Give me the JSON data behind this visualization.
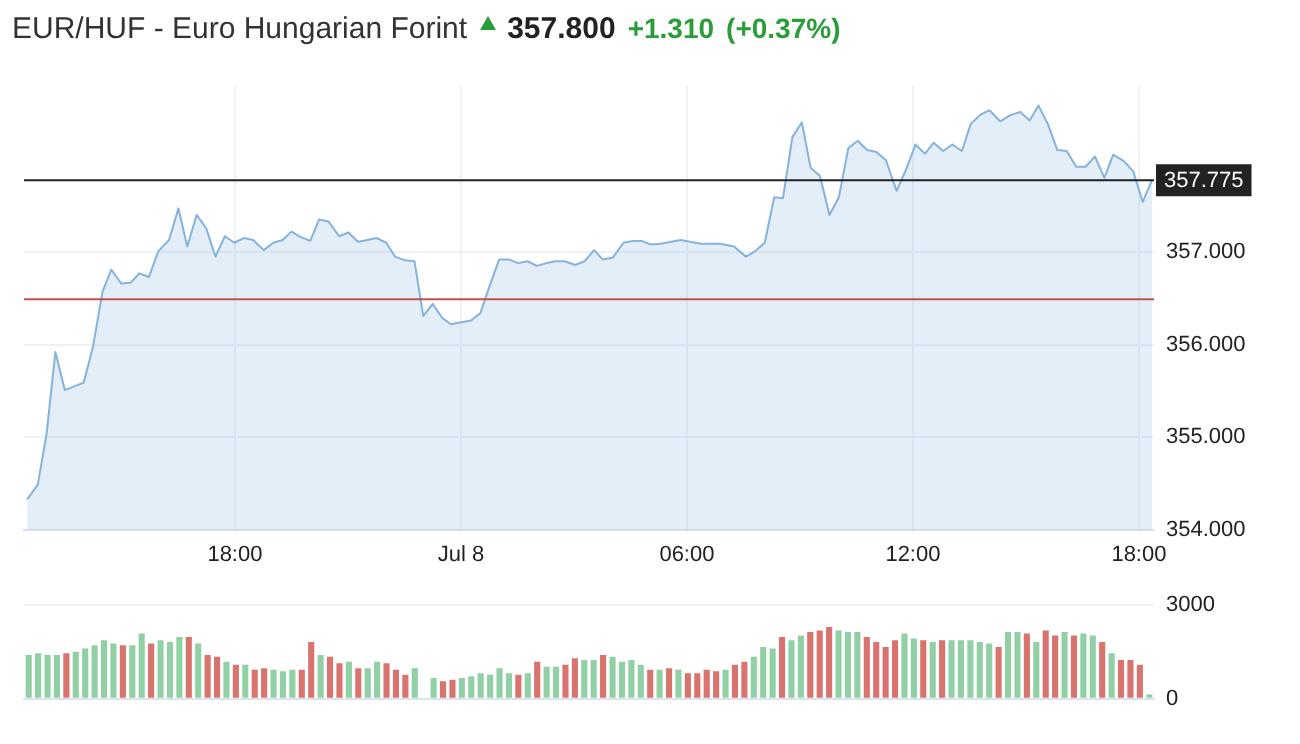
{
  "chart_data": [
    {
      "type": "area",
      "title": "EUR/HUF - Euro Hungarian Forint",
      "annotations": [
        "357.800",
        "+1.310",
        "(+0.37%)"
      ],
      "x": [
        "--07-07T12:29",
        "--07-07T12:46",
        "--07-07T13:00",
        "--07-07T13:14",
        "--07-07T13:29",
        "--07-07T13:59",
        "--07-07T14:14",
        "--07-07T14:29",
        "--07-07T14:43",
        "--07-07T14:59",
        "--07-07T15:14",
        "--07-07T15:28",
        "--07-07T15:43",
        "--07-07T15:58",
        "--07-07T16:15",
        "--07-07T16:30",
        "--07-07T16:44",
        "--07-07T16:59",
        "--07-07T17:14",
        "--07-07T17:29",
        "--07-07T17:44",
        "--07-07T17:59",
        "--07-07T18:14",
        "--07-07T18:29",
        "--07-07T18:46",
        "--07-07T19:01",
        "--07-07T19:16",
        "--07-07T19:30",
        "--07-07T19:45",
        "--07-07T20:00",
        "--07-07T20:14",
        "--07-07T20:29",
        "--07-07T20:46",
        "--07-07T21:01",
        "--07-07T21:16",
        "--07-07T21:31",
        "--07-07T21:46",
        "--07-07T22:01",
        "--07-07T22:15",
        "--07-07T22:31",
        "--07-07T22:46",
        "--07-07T23:00",
        "--07-07T23:15",
        "--07-07T23:30",
        "--07-07T23:44",
        "--07-07T23:59",
        "--07-08T00:16",
        "--07-08T00:31",
        "--07-08T00:46",
        "--07-08T01:01",
        "--07-08T01:16",
        "--07-08T01:31",
        "--07-08T01:46",
        "--07-08T02:01",
        "--07-08T02:16",
        "--07-08T02:30",
        "--07-08T02:45",
        "--07-08T03:02",
        "--07-08T03:17",
        "--07-08T03:32",
        "--07-08T03:46",
        "--07-08T04:02",
        "--07-08T04:19",
        "--07-08T04:34",
        "--07-08T04:48",
        "--07-08T05:03",
        "--07-08T05:18",
        "--07-08T05:50",
        "--07-08T06:22",
        "--07-08T06:53",
        "--07-08T07:15",
        "--07-08T07:34",
        "--07-08T07:49",
        "--07-08T08:04",
        "--07-08T08:19",
        "--07-08T08:33",
        "--07-08T08:48",
        "--07-08T09:03",
        "--07-08T09:17",
        "--07-08T09:32",
        "--07-08T09:47",
        "--07-08T10:02",
        "--07-08T10:17",
        "--07-08T10:32",
        "--07-08T10:47",
        "--07-08T11:02",
        "--07-08T11:17",
        "--07-08T11:34",
        "--07-08T11:49",
        "--07-08T12:04",
        "--07-08T12:19",
        "--07-08T12:33",
        "--07-08T12:48",
        "--07-08T13:03",
        "--07-08T13:18",
        "--07-08T13:32",
        "--07-08T13:47",
        "--07-08T14:02",
        "--07-08T14:19",
        "--07-08T14:36",
        "--07-08T14:51",
        "--07-08T15:06",
        "--07-08T15:20",
        "--07-08T15:35",
        "--07-08T15:50",
        "--07-08T16:05",
        "--07-08T16:20",
        "--07-08T16:35",
        "--07-08T16:50",
        "--07-08T17:05",
        "--07-08T17:19",
        "--07-08T17:36",
        "--07-08T17:51",
        "--07-08T18:06",
        "--07-08T18:21"
      ],
      "series": [
        {
          "color": "#86b3dd",
          "values": [
            354.33,
            354.49,
            355.04,
            355.92,
            355.51,
            355.59,
            355.98,
            356.57,
            356.81,
            356.66,
            356.67,
            356.77,
            356.73,
            357.01,
            357.13,
            357.47,
            357.06,
            357.4,
            357.26,
            356.95,
            357.17,
            357.1,
            357.15,
            357.13,
            357.02,
            357.1,
            357.13,
            357.22,
            357.16,
            357.12,
            357.35,
            357.33,
            357.17,
            357.21,
            357.11,
            357.13,
            357.15,
            357.1,
            356.95,
            356.91,
            356.9,
            356.31,
            356.44,
            356.29,
            356.22,
            356.24,
            356.26,
            356.34,
            356.64,
            356.92,
            356.92,
            356.88,
            356.9,
            356.85,
            356.88,
            356.9,
            356.9,
            356.86,
            356.9,
            357.02,
            356.92,
            356.94,
            357.1,
            357.12,
            357.12,
            357.08,
            357.09,
            357.13,
            357.09,
            357.09,
            357.06,
            356.95,
            357.01,
            357.1,
            357.59,
            357.58,
            358.24,
            358.4,
            357.91,
            357.82,
            357.4,
            357.59,
            358.12,
            358.2,
            358.1,
            358.08,
            357.99,
            357.66,
            357.89,
            358.16,
            358.06,
            358.18,
            358.09,
            358.16,
            358.09,
            358.38,
            358.48,
            358.53,
            358.41,
            358.48,
            358.51,
            358.42,
            358.58,
            358.38,
            358.1,
            358.09,
            357.92,
            357.92,
            358.03,
            357.8,
            358.05,
            357.98,
            357.87,
            357.54,
            357.78
          ]
        }
      ],
      "xlim": [
        "--07-07T12:24",
        "--07-08T18:24"
      ],
      "xticks": [
        {
          "value": "--07-07T18:00",
          "label": "18:00"
        },
        {
          "value": "--07-08T00:00",
          "label": "Jul 8"
        },
        {
          "value": "--07-08T06:00",
          "label": "06:00"
        },
        {
          "value": "--07-08T12:00",
          "label": "12:00"
        },
        {
          "value": "--07-08T18:00",
          "label": "18:00"
        }
      ],
      "ylim": [
        354,
        358.8
      ],
      "yticks": [
        {
          "value": 354,
          "label": "354.000"
        },
        {
          "value": 355,
          "label": "355.000"
        },
        {
          "value": 356,
          "label": "356.000"
        },
        {
          "value": 357,
          "label": "357.000"
        }
      ],
      "ref_lines": [
        {
          "axis": "y",
          "value": 357.775,
          "label": "357.775",
          "color": "#222222"
        },
        {
          "axis": "y",
          "value": 356.49,
          "color": "#c0504d"
        }
      ],
      "grid": true,
      "legend": false,
      "marker": "none",
      "line_style": "solid"
    },
    {
      "type": "bar",
      "categories": [
        null,
        null,
        null,
        null,
        null,
        null,
        null,
        null,
        null,
        null,
        null,
        null,
        null,
        null,
        null,
        null,
        null,
        null,
        null,
        null,
        null,
        null,
        null,
        null,
        null,
        null,
        null,
        null,
        null,
        null,
        null,
        null,
        null,
        null,
        null,
        null,
        null,
        null,
        null,
        null,
        null,
        null,
        null,
        null,
        null,
        null,
        null,
        null,
        null,
        null,
        null,
        null,
        null,
        null,
        null,
        null,
        null,
        null,
        null,
        null,
        null,
        null,
        null,
        null,
        null,
        null,
        null,
        null,
        null,
        null,
        null,
        null,
        null,
        null,
        null,
        null,
        null,
        null,
        null,
        null,
        null,
        null,
        null,
        null,
        null,
        null,
        null,
        null,
        null,
        null,
        null,
        null,
        null,
        null,
        null,
        null,
        null,
        null,
        null,
        null,
        null,
        null,
        null,
        null,
        null,
        null,
        null,
        null,
        null,
        null,
        null,
        null,
        null,
        null,
        null,
        null,
        null,
        null,
        null,
        null
      ],
      "values": [
        1400,
        1460,
        1400,
        1400,
        1460,
        1510,
        1610,
        1720,
        1880,
        1770,
        1720,
        1720,
        2090,
        1770,
        1880,
        1820,
        1980,
        1980,
        1770,
        1400,
        1350,
        1190,
        1090,
        1090,
        930,
        980,
        930,
        880,
        930,
        930,
        1820,
        1400,
        1350,
        1140,
        1190,
        980,
        980,
        1190,
        1140,
        930,
        770,
        980,
        null,
        670,
        560,
        610,
        670,
        720,
        820,
        770,
        980,
        820,
        770,
        820,
        1190,
        1030,
        1030,
        1090,
        1300,
        1240,
        1240,
        1400,
        1350,
        1190,
        1240,
        1090,
        930,
        930,
        980,
        930,
        820,
        820,
        930,
        880,
        930,
        1090,
        1190,
        1350,
        1660,
        1610,
        1980,
        1880,
        2030,
        2140,
        2190,
        2300,
        2190,
        2140,
        2140,
        1980,
        1820,
        1660,
        1880,
        2090,
        1930,
        1880,
        1820,
        1880,
        1880,
        1880,
        1880,
        1820,
        1770,
        1660,
        2140,
        2140,
        2090,
        1820,
        2190,
        2030,
        2140,
        2030,
        2090,
        2030,
        1820,
        1460,
        1240,
        1240,
        1090,
        140
      ],
      "colors": [
        "#91d0a5",
        "#91d0a5",
        "#91d0a5",
        "#91d0a5",
        "#d9736e",
        "#91d0a5",
        "#91d0a5",
        "#91d0a5",
        "#91d0a5",
        "#91d0a5",
        "#d9736e",
        "#91d0a5",
        "#91d0a5",
        "#d9736e",
        "#91d0a5",
        "#91d0a5",
        "#91d0a5",
        "#d9736e",
        "#91d0a5",
        "#d9736e",
        "#d9736e",
        "#91d0a5",
        "#d9736e",
        "#91d0a5",
        "#d9736e",
        "#d9736e",
        "#91d0a5",
        "#91d0a5",
        "#91d0a5",
        "#d9736e",
        "#d9736e",
        "#91d0a5",
        "#d9736e",
        "#d9736e",
        "#91d0a5",
        "#d9736e",
        "#91d0a5",
        "#91d0a5",
        "#d9736e",
        "#d9736e",
        "#d9736e",
        "#91d0a5",
        "#91d0a5",
        "#91d0a5",
        "#d9736e",
        "#d9736e",
        "#91d0a5",
        "#91d0a5",
        "#91d0a5",
        "#91d0a5",
        "#91d0a5",
        "#91d0a5",
        "#d9736e",
        "#91d0a5",
        "#d9736e",
        "#91d0a5",
        "#91d0a5",
        "#d9736e",
        "#d9736e",
        "#91d0a5",
        "#91d0a5",
        "#d9736e",
        "#91d0a5",
        "#91d0a5",
        "#91d0a5",
        "#91d0a5",
        "#d9736e",
        "#91d0a5",
        "#d9736e",
        "#91d0a5",
        "#d9736e",
        "#d9736e",
        "#d9736e",
        "#d9736e",
        "#91d0a5",
        "#d9736e",
        "#d9736e",
        "#91d0a5",
        "#91d0a5",
        "#91d0a5",
        "#d9736e",
        "#91d0a5",
        "#91d0a5",
        "#d9736e",
        "#d9736e",
        "#d9736e",
        "#91d0a5",
        "#91d0a5",
        "#91d0a5",
        "#d9736e",
        "#d9736e",
        "#d9736e",
        "#d9736e",
        "#91d0a5",
        "#91d0a5",
        "#d9736e",
        "#91d0a5",
        "#d9736e",
        "#91d0a5",
        "#91d0a5",
        "#91d0a5",
        "#91d0a5",
        "#91d0a5",
        "#d9736e",
        "#91d0a5",
        "#91d0a5",
        "#d9736e",
        "#91d0a5",
        "#d9736e",
        "#d9736e",
        "#91d0a5",
        "#d9736e",
        "#91d0a5",
        "#91d0a5",
        "#d9736e",
        "#91d0a5",
        "#d9736e",
        "#d9736e",
        "#d9736e",
        "#91d0a5"
      ],
      "ylim": [
        0,
        3000
      ],
      "yticks": [
        0,
        3000
      ],
      "tick_labels": "y",
      "grid": "y",
      "legend": false
    }
  ]
}
